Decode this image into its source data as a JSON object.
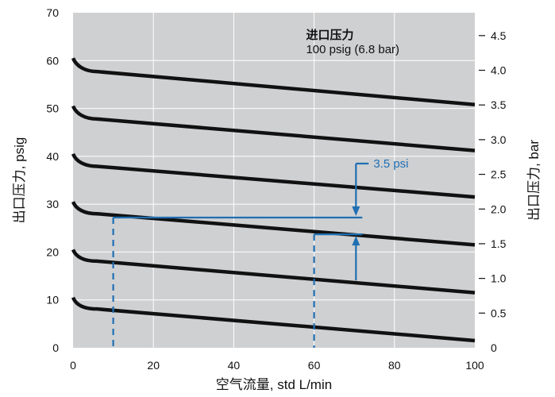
{
  "chart_data": {
    "type": "line",
    "xlabel": "空气流量, std L/min",
    "ylabel": "出口压力, psig",
    "y2label": "出口压力, bar",
    "xlim": [
      0,
      100
    ],
    "ylim": [
      0,
      70
    ],
    "y2lim": [
      0,
      4.83
    ],
    "grid": true,
    "x_ticks": [
      "0",
      "20",
      "40",
      "60",
      "80",
      "100"
    ],
    "y_ticks": [
      "0",
      "10",
      "20",
      "30",
      "40",
      "50",
      "60",
      "70"
    ],
    "y2_ticks": [
      "0",
      "0.5",
      "1.0",
      "1.5",
      "2.0",
      "2.5",
      "3.0",
      "3.5",
      "4.0",
      "4.5"
    ],
    "series": [
      {
        "values": [
          [
            0,
            10.5
          ],
          [
            1,
            9.5
          ],
          [
            3,
            8.6
          ],
          [
            6,
            8.1
          ],
          [
            100,
            1.5
          ]
        ]
      },
      {
        "values": [
          [
            0,
            20.5
          ],
          [
            1,
            19.5
          ],
          [
            3,
            18.6
          ],
          [
            6,
            18.1
          ],
          [
            100,
            11.5
          ]
        ]
      },
      {
        "values": [
          [
            0,
            30.5
          ],
          [
            1,
            29.5
          ],
          [
            3,
            28.6
          ],
          [
            6,
            28.0
          ],
          [
            100,
            21.5
          ]
        ]
      },
      {
        "values": [
          [
            0,
            40.5
          ],
          [
            1,
            39.4
          ],
          [
            3,
            38.5
          ],
          [
            6,
            37.9
          ],
          [
            100,
            31.5
          ]
        ]
      },
      {
        "values": [
          [
            0,
            50.5
          ],
          [
            1,
            49.4
          ],
          [
            3,
            48.5
          ],
          [
            6,
            47.8
          ],
          [
            100,
            41.2
          ]
        ]
      },
      {
        "values": [
          [
            0,
            60.5
          ],
          [
            1,
            59.4
          ],
          [
            3,
            58.4
          ],
          [
            6,
            57.7
          ],
          [
            100,
            50.8
          ]
        ]
      }
    ],
    "annotations": {
      "inlet_title": "进口压力",
      "inlet_value": "100 psig (6.8 bar)",
      "drop_label": "3.5 psi",
      "marker_color": "#1f6fb2",
      "marker_low": {
        "x": 10,
        "y": 27.2
      },
      "marker_high": {
        "x": 60,
        "y": 23.7
      },
      "marker_line_end_x": 72
    }
  }
}
